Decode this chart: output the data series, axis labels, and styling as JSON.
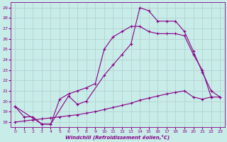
{
  "xlabel": "Windchill (Refroidissement éolien,°C)",
  "background_color": "#c8ece8",
  "line_color": "#880088",
  "grid_color": "#b0cece",
  "xlim": [
    -0.5,
    23.5
  ],
  "ylim": [
    17.5,
    29.5
  ],
  "yticks": [
    18,
    19,
    20,
    21,
    22,
    23,
    24,
    25,
    26,
    27,
    28,
    29
  ],
  "xticks": [
    0,
    1,
    2,
    3,
    4,
    5,
    6,
    7,
    8,
    9,
    10,
    11,
    12,
    13,
    14,
    15,
    16,
    17,
    18,
    19,
    20,
    21,
    22,
    23
  ],
  "series": [
    {
      "x": [
        0,
        1,
        2,
        3,
        4,
        5,
        6,
        7,
        8,
        9,
        10,
        11,
        12,
        13,
        14,
        15,
        16,
        17,
        18,
        19,
        20,
        21,
        22
      ],
      "y": [
        19.5,
        18.5,
        18.5,
        17.8,
        17.8,
        20.2,
        20.7,
        21.0,
        21.3,
        21.7,
        25.0,
        26.2,
        26.7,
        27.2,
        27.2,
        26.7,
        26.5,
        26.5,
        26.5,
        26.3,
        24.5,
        23.0,
        20.4
      ]
    },
    {
      "x": [
        0,
        3,
        4,
        6,
        7,
        8,
        10,
        11,
        12,
        13,
        14,
        15,
        16,
        17,
        18,
        19,
        20,
        21,
        22,
        23
      ],
      "y": [
        19.5,
        17.8,
        17.8,
        20.5,
        19.7,
        20.0,
        22.5,
        23.5,
        24.5,
        25.5,
        29.0,
        28.7,
        27.7,
        27.7,
        27.7,
        26.7,
        24.8,
        22.8,
        21.0,
        20.4
      ]
    },
    {
      "x": [
        0,
        1,
        2,
        3,
        4,
        5,
        6,
        7,
        8,
        9,
        10,
        11,
        12,
        13,
        14,
        15,
        16,
        17,
        18,
        19,
        20,
        21,
        22,
        23
      ],
      "y": [
        18.0,
        18.1,
        18.2,
        18.3,
        18.4,
        18.5,
        18.6,
        18.7,
        18.85,
        19.0,
        19.2,
        19.4,
        19.6,
        19.8,
        20.1,
        20.3,
        20.5,
        20.7,
        20.85,
        21.0,
        20.4,
        20.2,
        20.4,
        20.4
      ]
    }
  ]
}
